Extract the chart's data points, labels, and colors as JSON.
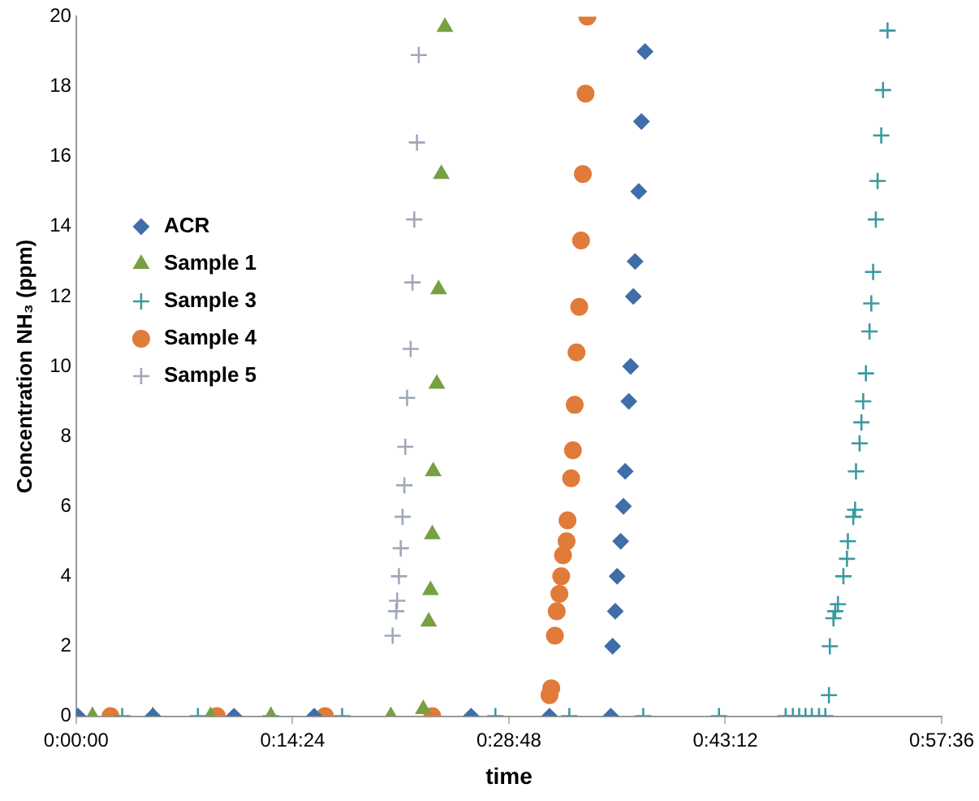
{
  "chart_data": {
    "type": "scatter",
    "xlabel": "time",
    "ylabel": "Concentration NH₃ (ppm)",
    "xlim": [
      0,
      0.96
    ],
    "xticks": [
      {
        "value": 0,
        "label": "0:00:00"
      },
      {
        "value": 0.24,
        "label": "0:14:24"
      },
      {
        "value": 0.48,
        "label": "0:28:48"
      },
      {
        "value": 0.72,
        "label": "0:43:12"
      },
      {
        "value": 0.96,
        "label": "0:57:36"
      }
    ],
    "ylim": [
      0,
      20
    ],
    "yticks": [
      0,
      2,
      4,
      6,
      8,
      10,
      12,
      14,
      16,
      18,
      20
    ],
    "grid": false,
    "legend": "left",
    "series": [
      {
        "name": "ACR",
        "color": "#3f6ea8",
        "marker": "diamond",
        "x": [
          0.002,
          0.085,
          0.175,
          0.264,
          0.438,
          0.525,
          0.593,
          0.595,
          0.598,
          0.6,
          0.604,
          0.607,
          0.609,
          0.613,
          0.615,
          0.618,
          0.62,
          0.624,
          0.627,
          0.631
        ],
        "values": [
          0,
          0,
          0,
          0,
          0,
          0,
          0,
          2.0,
          3.0,
          4.0,
          5.0,
          6.0,
          7.0,
          9.0,
          10.0,
          12.0,
          13.0,
          15.0,
          17.0,
          19.0
        ]
      },
      {
        "name": "Sample 1",
        "color": "#77a043",
        "marker": "triangle",
        "x": [
          0.018,
          0.085,
          0.149,
          0.216,
          0.349,
          0.385,
          0.391,
          0.393,
          0.395,
          0.396,
          0.4,
          0.402,
          0.405,
          0.409
        ],
        "values": [
          0,
          0,
          0,
          0,
          0,
          0.2,
          2.7,
          3.6,
          5.2,
          7.0,
          9.5,
          12.2,
          15.5,
          19.7
        ]
      },
      {
        "name": "Sample 3",
        "color": "#3a9aa0",
        "marker": "cross",
        "x": [
          0.051,
          0.135,
          0.216,
          0.295,
          0.465,
          0.547,
          0.629,
          0.713,
          0.787,
          0.795,
          0.802,
          0.809,
          0.816,
          0.824,
          0.831,
          0.835,
          0.836,
          0.84,
          0.842,
          0.845,
          0.851,
          0.855,
          0.856,
          0.862,
          0.864,
          0.865,
          0.869,
          0.871,
          0.873,
          0.876,
          0.88,
          0.882,
          0.884,
          0.887,
          0.889,
          0.893,
          0.895,
          0.9
        ],
        "values": [
          0,
          0,
          0,
          0,
          0,
          0,
          0,
          0,
          0,
          0,
          0,
          0,
          0,
          0,
          0,
          0.6,
          2.0,
          2.8,
          3.0,
          3.2,
          4.0,
          4.5,
          5.0,
          5.7,
          5.9,
          7.0,
          7.8,
          8.4,
          9.0,
          9.8,
          11.0,
          11.8,
          12.7,
          14.2,
          15.3,
          16.6,
          17.9,
          19.6
        ]
      },
      {
        "name": "Sample 4",
        "color": "#e07b39",
        "marker": "circle",
        "x": [
          0.038,
          0.156,
          0.276,
          0.395,
          0.525,
          0.527,
          0.531,
          0.533,
          0.536,
          0.538,
          0.54,
          0.544,
          0.545,
          0.549,
          0.551,
          0.553,
          0.555,
          0.558,
          0.56,
          0.562,
          0.565,
          0.567
        ],
        "values": [
          0,
          0,
          0,
          0,
          0.6,
          0.8,
          2.3,
          3.0,
          3.5,
          4.0,
          4.6,
          5.0,
          5.6,
          6.8,
          7.6,
          8.9,
          10.4,
          11.7,
          13.6,
          15.5,
          17.8,
          20.0
        ]
      },
      {
        "name": "Sample 5",
        "color": "#a0a8b8",
        "marker": "cross",
        "x": [
          0.351,
          0.355,
          0.356,
          0.358,
          0.36,
          0.362,
          0.364,
          0.365,
          0.367,
          0.371,
          0.373,
          0.375,
          0.378,
          0.38
        ],
        "values": [
          2.3,
          3.0,
          3.3,
          4.0,
          4.8,
          5.7,
          6.6,
          7.7,
          9.1,
          10.5,
          12.4,
          14.2,
          16.4,
          18.9
        ]
      }
    ]
  }
}
